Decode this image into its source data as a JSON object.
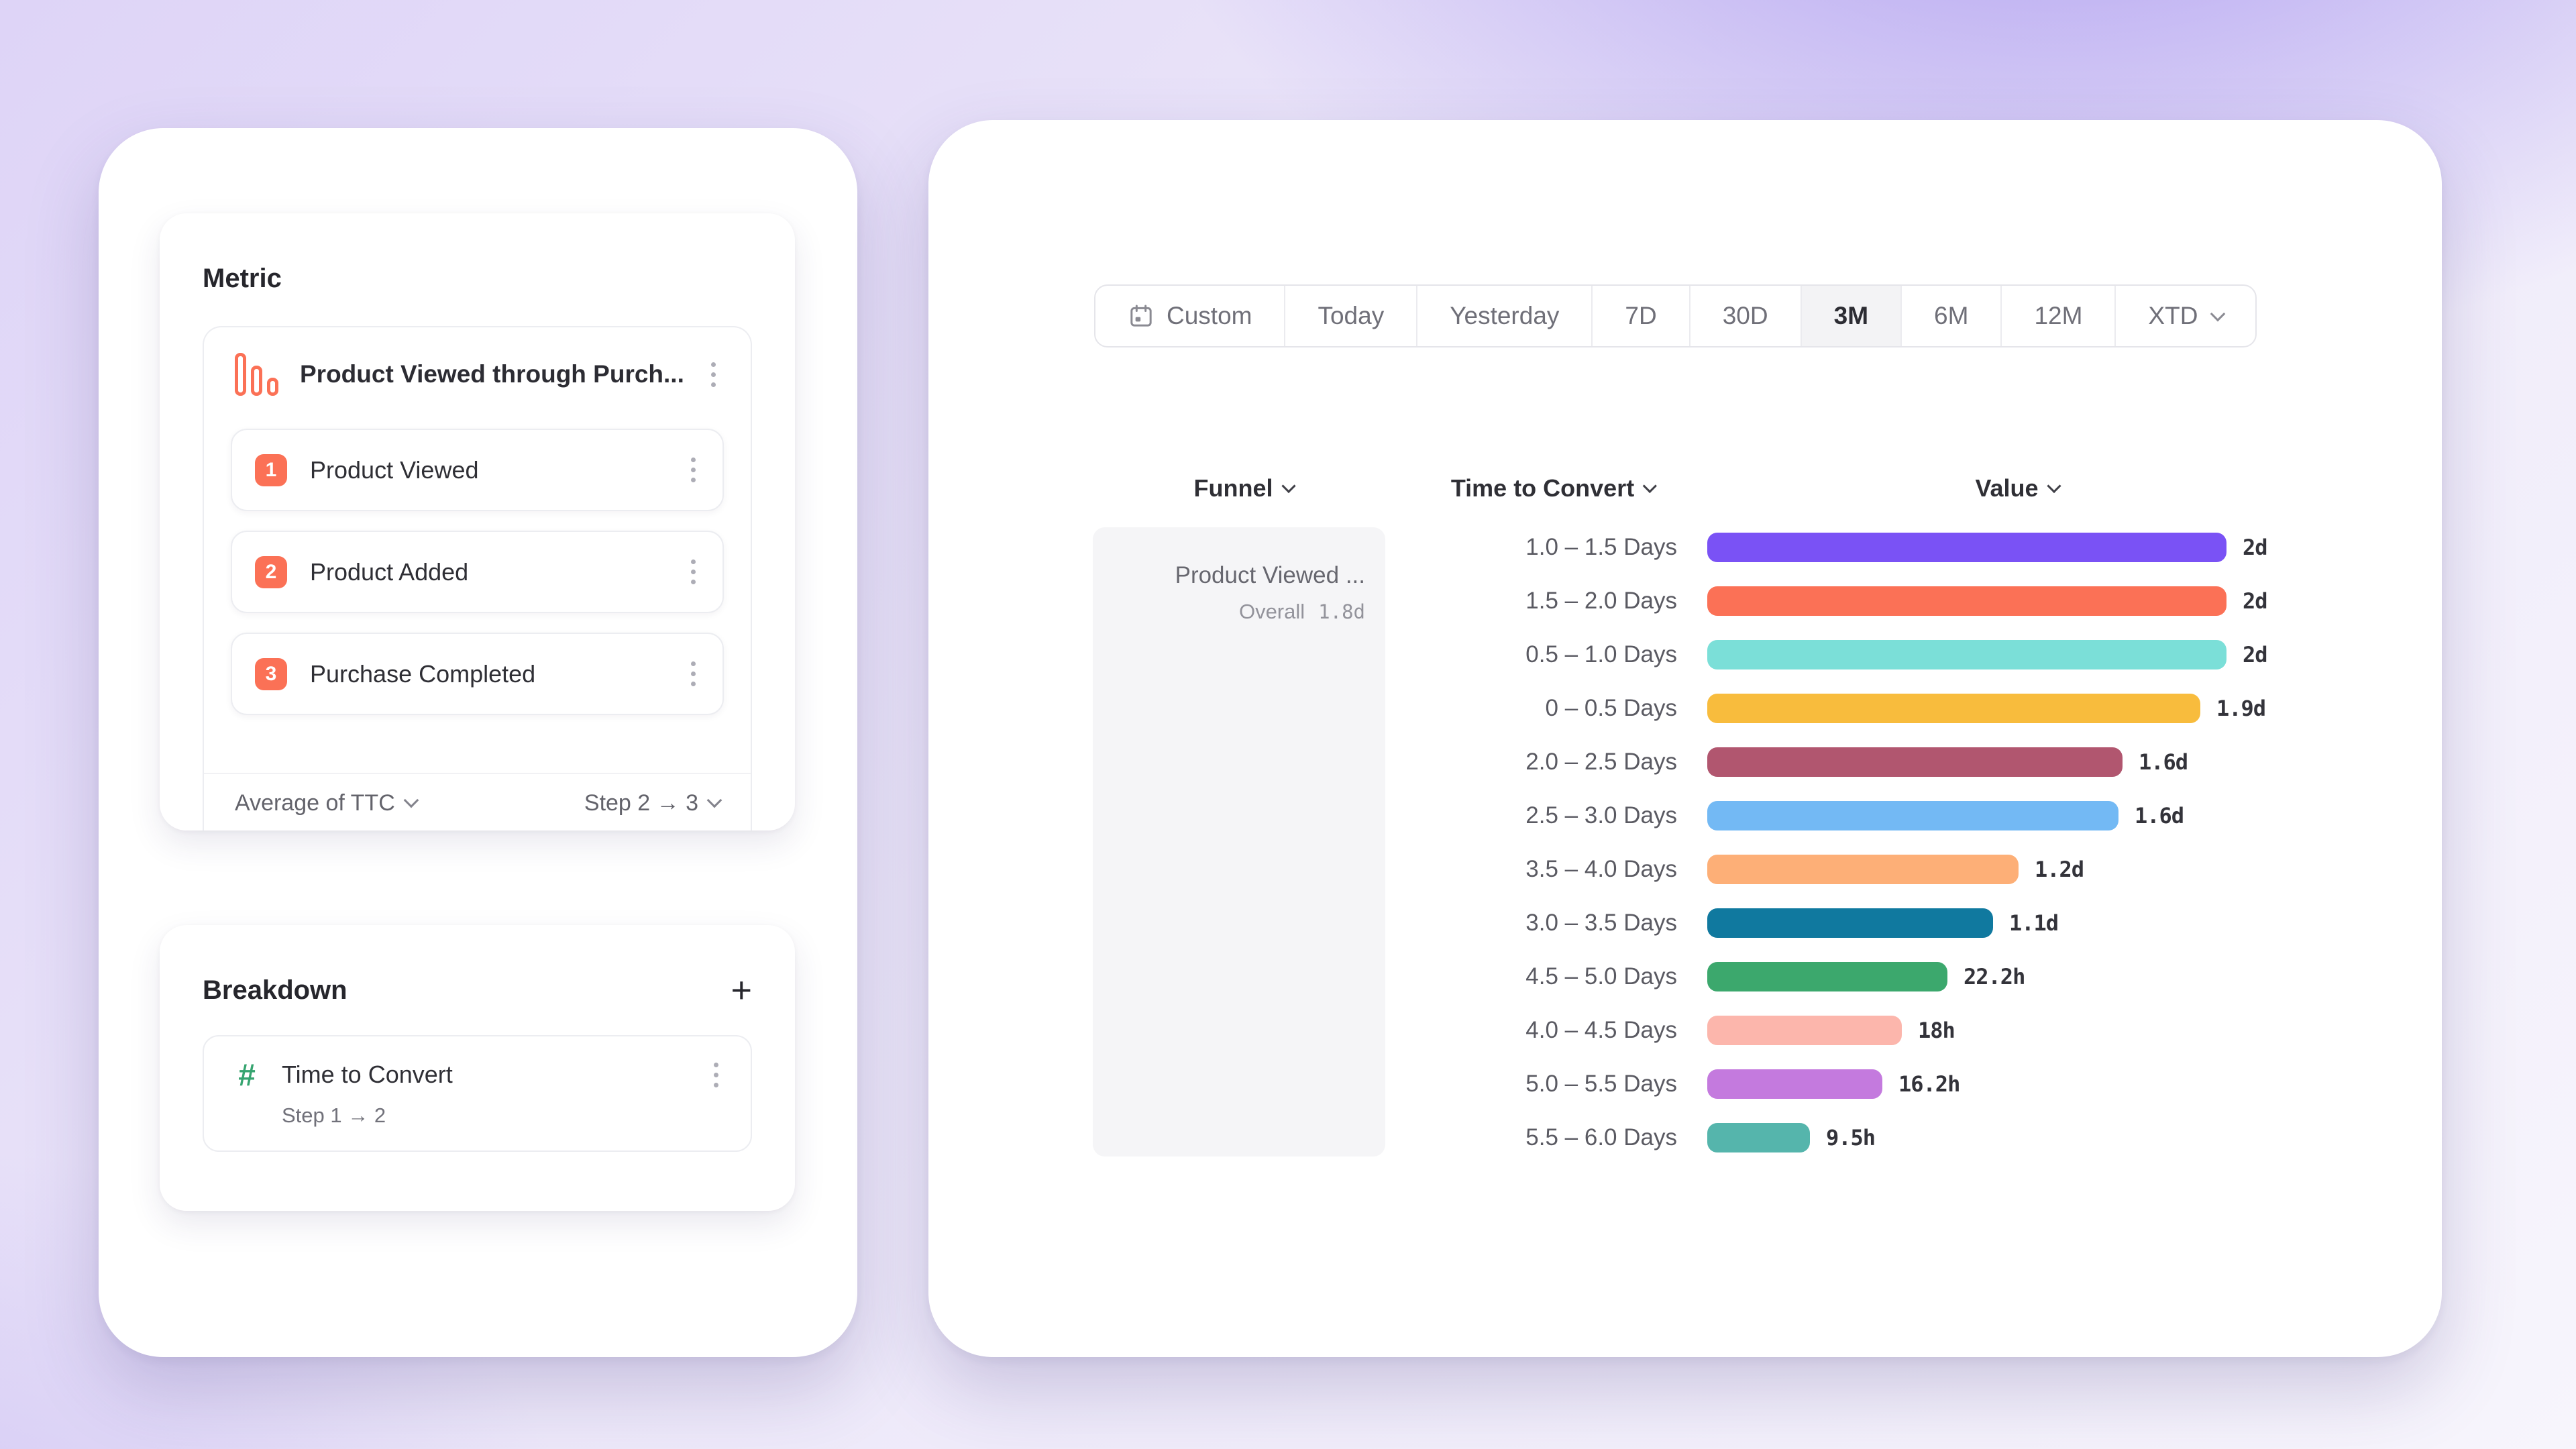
{
  "left_panel": {
    "metric_section": {
      "title": "Metric",
      "funnel_card": {
        "icon": "funnel-chart-icon",
        "accent_color": "#fb7156",
        "title": "Product Viewed through Purch...",
        "steps": [
          {
            "number": "1",
            "label": "Product Viewed"
          },
          {
            "number": "2",
            "label": "Product Added"
          },
          {
            "number": "3",
            "label": "Purchase Completed"
          }
        ],
        "measurement_label": "Average of TTC",
        "step_range_label": "Step 2 → 3"
      }
    },
    "breakdown_section": {
      "title": "Breakdown",
      "add_button": "+",
      "property_card": {
        "icon": "hash-icon",
        "icon_color": "#36a470",
        "name": "Time to Convert",
        "detail": "Step 1 → 2"
      }
    }
  },
  "right_panel": {
    "date_range_picker": {
      "selected": "3M",
      "options": [
        {
          "label": "Custom",
          "icon": "calendar-icon"
        },
        {
          "label": "Today"
        },
        {
          "label": "Yesterday"
        },
        {
          "label": "7D"
        },
        {
          "label": "30D"
        },
        {
          "label": "3M",
          "selected": true
        },
        {
          "label": "6M"
        },
        {
          "label": "12M"
        },
        {
          "label": "XTD",
          "chevron": true
        }
      ]
    },
    "table": {
      "columns": [
        {
          "label": "Funnel"
        },
        {
          "label": "Time to Convert"
        },
        {
          "label": "Value"
        }
      ],
      "funnel_cell": {
        "name": "Product Viewed ...",
        "overall_label": "Overall",
        "overall_value": "1.8d"
      }
    }
  },
  "chart_data": {
    "type": "bar",
    "orientation": "horizontal",
    "categories": [
      "1.0 – 1.5 Days",
      "1.5 – 2.0 Days",
      "0.5 – 1.0 Days",
      "0 – 0.5 Days",
      "2.0 – 2.5 Days",
      "2.5 – 3.0 Days",
      "3.5 – 4.0 Days",
      "3.0 – 3.5 Days",
      "4.5 – 5.0 Days",
      "4.0 – 4.5 Days",
      "5.0 – 5.5 Days",
      "5.5 – 6.0 Days"
    ],
    "values_hours": [
      48,
      48,
      48,
      45.6,
      38.4,
      38,
      28.8,
      26.4,
      22.2,
      18,
      16.2,
      9.5
    ],
    "value_labels": [
      "2d",
      "2d",
      "2d",
      "1.9d",
      "1.6d",
      "1.6d",
      "1.2d",
      "1.1d",
      "22.2h",
      "18h",
      "16.2h",
      "9.5h"
    ],
    "bar_colors": [
      "#7a52f5",
      "#fb7156",
      "#7bdfd8",
      "#f8bc3d",
      "#b1566f",
      "#73b9f4",
      "#fdaf77",
      "#10799f",
      "#3ca86d",
      "#fcb6ac",
      "#c47ade",
      "#55b5ac"
    ],
    "xlim_hours": [
      0,
      48
    ],
    "grid": false,
    "legend": "none"
  }
}
